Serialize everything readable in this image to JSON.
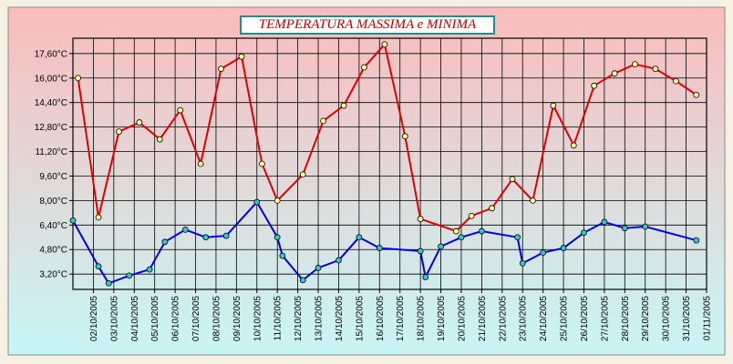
{
  "chart_data": {
    "type": "line",
    "title": "TEMPERATURA MASSIMA e MINIMA",
    "y_ticks": [
      "3,20°C",
      "4,80°C",
      "6,40°C",
      "8,00°C",
      "9,60°C",
      "11,20°C",
      "12,80°C",
      "14,40°C",
      "16,00°C",
      "17,60°C"
    ],
    "y_tick_values": [
      3.2,
      4.8,
      6.4,
      8.0,
      9.6,
      11.2,
      12.8,
      14.4,
      16.0,
      17.6
    ],
    "ylim": [
      2.2,
      18.6
    ],
    "xlim": [
      "2005-10-01",
      "2005-11-01"
    ],
    "x_tick_labels": [
      "02/10/2005",
      "03/10/2005",
      "04/10/2005",
      "05/10/2005",
      "06/10/2005",
      "07/10/2005",
      "08/10/2005",
      "09/10/2005",
      "10/10/2005",
      "11/10/2005",
      "12/10/2005",
      "13/10/2005",
      "14/10/2005",
      "15/10/2005",
      "16/10/2005",
      "17/10/2005",
      "18/10/2005",
      "19/10/2005",
      "20/10/2005",
      "21/10/2005",
      "22/10/2005",
      "23/10/2005",
      "24/10/2005",
      "25/10/2005",
      "26/10/2005",
      "27/10/2005",
      "28/10/2005",
      "29/10/2005",
      "30/10/2005",
      "31/10/2005",
      "01/11/2005"
    ],
    "grid": true,
    "series": [
      {
        "color": "#e00000",
        "marker_color": "#ffff99",
        "points": [
          [
            "2005-10-01T06:00",
            16.0
          ],
          [
            "2005-10-02T06:00",
            6.9
          ],
          [
            "2005-10-03T06:00",
            12.5
          ],
          [
            "2005-10-04T06:00",
            13.1
          ],
          [
            "2005-10-05T06:00",
            12.0
          ],
          [
            "2005-10-06T06:00",
            13.9
          ],
          [
            "2005-10-07T06:00",
            10.4
          ],
          [
            "2005-10-08T06:00",
            16.6
          ],
          [
            "2005-10-09T06:00",
            17.4
          ],
          [
            "2005-10-10T06:00",
            10.4
          ],
          [
            "2005-10-11T00:00",
            8.0
          ],
          [
            "2005-10-12T06:00",
            9.7
          ],
          [
            "2005-10-13T06:00",
            13.2
          ],
          [
            "2005-10-14T06:00",
            14.2
          ],
          [
            "2005-10-15T06:00",
            16.7
          ],
          [
            "2005-10-16T06:00",
            18.2
          ],
          [
            "2005-10-17T06:00",
            12.2
          ],
          [
            "2005-10-18T00:00",
            6.8
          ],
          [
            "2005-10-19T18:00",
            6.0
          ],
          [
            "2005-10-20T12:00",
            7.0
          ],
          [
            "2005-10-21T12:00",
            7.5
          ],
          [
            "2005-10-22T12:00",
            9.4
          ],
          [
            "2005-10-23T12:00",
            8.0
          ],
          [
            "2005-10-24T12:00",
            14.2
          ],
          [
            "2005-10-25T12:00",
            11.6
          ],
          [
            "2005-10-26T12:00",
            15.5
          ],
          [
            "2005-10-27T12:00",
            16.3
          ],
          [
            "2005-10-28T12:00",
            16.9
          ],
          [
            "2005-10-29T12:00",
            16.6
          ],
          [
            "2005-10-30T12:00",
            15.8
          ],
          [
            "2005-10-31T12:00",
            14.9
          ]
        ]
      },
      {
        "color": "#0000e0",
        "marker_color": "#30c8c8",
        "points": [
          [
            "2005-10-01T00:00",
            6.7
          ],
          [
            "2005-10-02T06:00",
            3.7
          ],
          [
            "2005-10-02T18:00",
            2.6
          ],
          [
            "2005-10-03T18:00",
            3.1
          ],
          [
            "2005-10-04T18:00",
            3.5
          ],
          [
            "2005-10-05T12:00",
            5.3
          ],
          [
            "2005-10-06T12:00",
            6.1
          ],
          [
            "2005-10-07T12:00",
            5.6
          ],
          [
            "2005-10-08T12:00",
            5.7
          ],
          [
            "2005-10-10T00:00",
            7.9
          ],
          [
            "2005-10-11T00:00",
            5.6
          ],
          [
            "2005-10-11T06:00",
            4.4
          ],
          [
            "2005-10-12T06:00",
            2.8
          ],
          [
            "2005-10-13T00:00",
            3.6
          ],
          [
            "2005-10-14T00:00",
            4.1
          ],
          [
            "2005-10-15T00:00",
            5.6
          ],
          [
            "2005-10-16T00:00",
            4.9
          ],
          [
            "2005-10-18T00:00",
            4.7
          ],
          [
            "2005-10-18T06:00",
            3.0
          ],
          [
            "2005-10-19T00:00",
            5.0
          ],
          [
            "2005-10-20T00:00",
            5.6
          ],
          [
            "2005-10-21T00:00",
            6.0
          ],
          [
            "2005-10-22T18:00",
            5.6
          ],
          [
            "2005-10-23T00:00",
            3.9
          ],
          [
            "2005-10-24T00:00",
            4.6
          ],
          [
            "2005-10-25T00:00",
            4.9
          ],
          [
            "2005-10-26T00:00",
            5.9
          ],
          [
            "2005-10-27T00:00",
            6.6
          ],
          [
            "2005-10-28T00:00",
            6.2
          ],
          [
            "2005-10-29T00:00",
            6.3
          ],
          [
            "2005-10-31T12:00",
            5.4
          ]
        ]
      }
    ]
  }
}
